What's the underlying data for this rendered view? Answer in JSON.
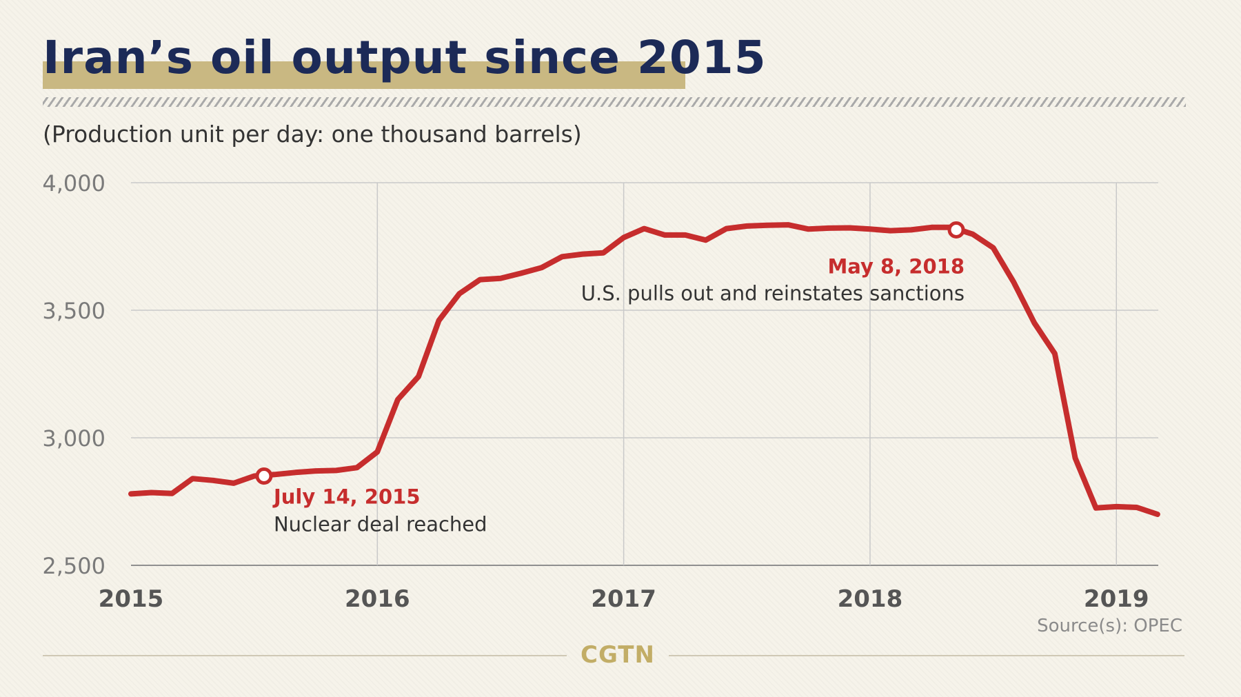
{
  "header": {
    "title": "Iran’s oil output since 2015",
    "subtitle": "(Production unit per day: one thousand barrels)"
  },
  "footer": {
    "source": "Source(s): OPEC",
    "logo": "CGTN"
  },
  "colors": {
    "line": "#c62d2d",
    "title": "#1c2a57",
    "highlight": "#c9b882",
    "annotation_date": "#c62d2d"
  },
  "chart_data": {
    "type": "line",
    "xlim": [
      2015.0,
      2019.17
    ],
    "ylim": [
      2500,
      4000
    ],
    "y_ticks": [
      {
        "value": 4000,
        "label": "4,000"
      },
      {
        "value": 3500,
        "label": "3,500"
      },
      {
        "value": 3000,
        "label": "3,000"
      },
      {
        "value": 2500,
        "label": "2,500"
      }
    ],
    "x_ticks": [
      {
        "value": 2015,
        "label": "2015"
      },
      {
        "value": 2016,
        "label": "2016"
      },
      {
        "value": 2017,
        "label": "2017"
      },
      {
        "value": 2018,
        "label": "2018"
      },
      {
        "value": 2019,
        "label": "2019"
      }
    ],
    "grid": true,
    "series": [
      {
        "x": [
          2015.0,
          2015.083,
          2015.167,
          2015.25,
          2015.333,
          2015.417,
          2015.5,
          2015.583,
          2015.667,
          2015.75,
          2015.833,
          2015.917,
          2016.0,
          2016.083,
          2016.167,
          2016.25,
          2016.333,
          2016.417,
          2016.5,
          2016.583,
          2016.667,
          2016.75,
          2016.833,
          2016.917,
          2017.0,
          2017.083,
          2017.167,
          2017.25,
          2017.333,
          2017.417,
          2017.5,
          2017.583,
          2017.667,
          2017.75,
          2017.833,
          2017.917,
          2018.0,
          2018.083,
          2018.167,
          2018.25,
          2018.333,
          2018.417,
          2018.5,
          2018.583,
          2018.667,
          2018.75,
          2018.833,
          2018.917,
          2019.0,
          2019.083,
          2019.167
        ],
        "values": [
          2780,
          2785,
          2782,
          2840,
          2833,
          2822,
          2850,
          2856,
          2864,
          2870,
          2872,
          2883,
          2945,
          3150,
          3240,
          3460,
          3565,
          3620,
          3625,
          3645,
          3667,
          3710,
          3720,
          3725,
          3785,
          3820,
          3795,
          3795,
          3775,
          3820,
          3830,
          3833,
          3835,
          3818,
          3822,
          3823,
          3818,
          3812,
          3815,
          3825,
          3825,
          3798,
          3745,
          3610,
          3450,
          3330,
          2920,
          2725,
          2730,
          2727,
          2700
        ]
      }
    ],
    "annotations": [
      {
        "x": 2015.54,
        "value": 2850,
        "date": "July 14, 2015",
        "text": "Nuclear deal reached",
        "placement": "below-right"
      },
      {
        "x": 2018.35,
        "value": 3815,
        "date": "May 8, 2018",
        "text": "U.S. pulls out and reinstates sanctions",
        "placement": "below-left"
      }
    ]
  }
}
